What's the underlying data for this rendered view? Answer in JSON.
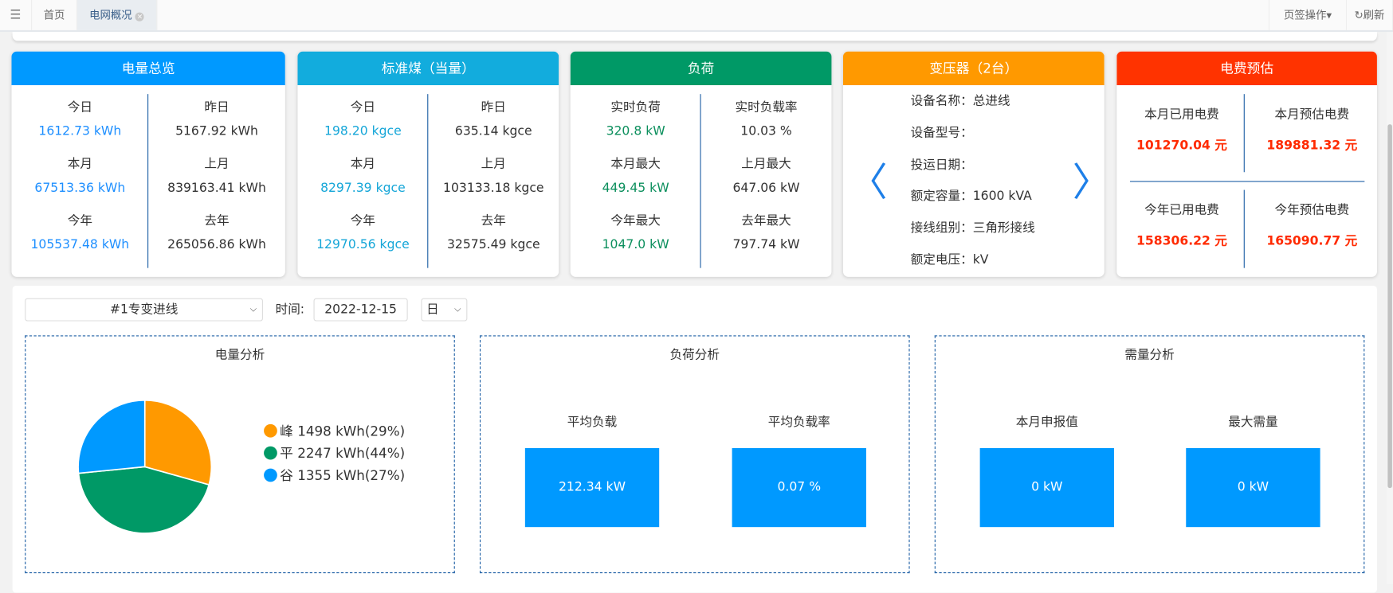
{
  "topbar": {
    "menu_icon": "hamburger-icon",
    "tabs": [
      {
        "label": "首页"
      },
      {
        "label": "电网概况",
        "active": true
      }
    ],
    "tab_ops": "页签操作▾",
    "refresh": "刷新"
  },
  "cards": {
    "energy": {
      "title": "电量总览",
      "color": "#0099ff",
      "items": [
        {
          "label": "今日",
          "value": "1612.73 kWh"
        },
        {
          "label": "昨日",
          "value": "5167.92 kWh"
        },
        {
          "label": "本月",
          "value": "67513.36 kWh"
        },
        {
          "label": "上月",
          "value": "839163.41 kWh"
        },
        {
          "label": "今年",
          "value": "105537.48 kWh"
        },
        {
          "label": "去年",
          "value": "265056.86 kWh"
        }
      ]
    },
    "coal": {
      "title": "标准煤（当量）",
      "color": "#12acdd",
      "items": [
        {
          "label": "今日",
          "value": "198.20 kgce"
        },
        {
          "label": "昨日",
          "value": "635.14 kgce"
        },
        {
          "label": "本月",
          "value": "8297.39 kgce"
        },
        {
          "label": "上月",
          "value": "103133.18 kgce"
        },
        {
          "label": "今年",
          "value": "12970.56 kgce"
        },
        {
          "label": "去年",
          "value": "32575.49 kgce"
        }
      ]
    },
    "load": {
      "title": "负荷",
      "color": "#009966",
      "items": [
        {
          "label": "实时负荷",
          "value": "320.8 kW"
        },
        {
          "label": "实时负载率",
          "value": "10.03 %"
        },
        {
          "label": "本月最大",
          "value": "449.45 kW"
        },
        {
          "label": "上月最大",
          "value": "647.06 kW"
        },
        {
          "label": "今年最大",
          "value": "1047.0 kW"
        },
        {
          "label": "去年最大",
          "value": "797.74 kW"
        }
      ]
    },
    "transformer": {
      "title": "变压器（2台）",
      "color": "#ff9900",
      "rows": [
        "设备名称：总进线",
        "设备型号：",
        "投运日期：",
        "额定容量：1600 kVA",
        "接线组别：三角形接线",
        "额定电压：kV"
      ]
    },
    "fee": {
      "title": "电费预估",
      "color": "#ff3300",
      "items": [
        {
          "label": "本月已用电费",
          "value": "101270.04 元"
        },
        {
          "label": "本月预估电费",
          "value": "189881.32 元"
        },
        {
          "label": "今年已用电费",
          "value": "158306.22 元"
        },
        {
          "label": "今年预估电费",
          "value": "165090.77 元"
        }
      ]
    }
  },
  "filters": {
    "line": "#1专变进线",
    "time_label": "时间:",
    "date": "2022-12-15",
    "period": "日"
  },
  "analysis": {
    "energy": {
      "title": "电量分析"
    },
    "load": {
      "title": "负荷分析",
      "items": [
        {
          "label": "平均负载",
          "value": "212.34 kW"
        },
        {
          "label": "平均负载率",
          "value": "0.07 %"
        }
      ]
    },
    "demand": {
      "title": "需量分析",
      "items": [
        {
          "label": "本月申报值",
          "value": "0 kW"
        },
        {
          "label": "最大需量",
          "value": "0 kW"
        }
      ]
    }
  },
  "chart_data": {
    "type": "pie",
    "title": "电量分析",
    "slices": [
      {
        "name": "峰",
        "value": 1498,
        "unit": "kWh",
        "percent": 29,
        "color": "#ff9900",
        "legend": "峰 1498 kWh(29%)"
      },
      {
        "name": "平",
        "value": 2247,
        "unit": "kWh",
        "percent": 44,
        "color": "#009966",
        "legend": "平 2247 kWh(44%)"
      },
      {
        "name": "谷",
        "value": 1355,
        "unit": "kWh",
        "percent": 27,
        "color": "#0099ff",
        "legend": "谷 1355 kWh(27%)"
      }
    ],
    "legend_placement": "right"
  }
}
